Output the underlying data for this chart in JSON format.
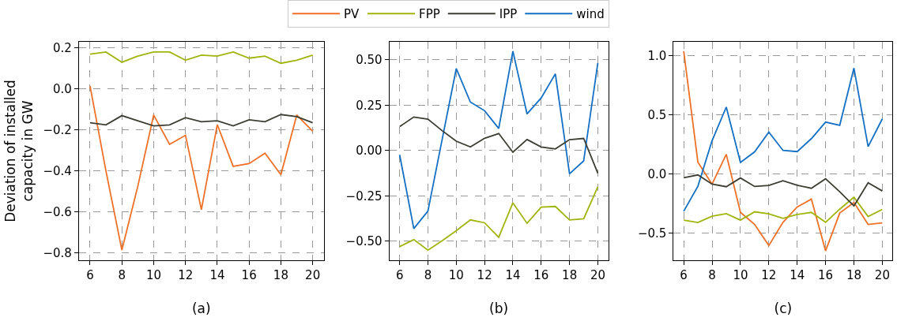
{
  "chart_data": [
    {
      "type": "line",
      "xlabel": "(a)",
      "ylabel": "Deviation of installed capacity in GW",
      "legend": "top",
      "grid": true,
      "line_style": "solid",
      "marker": "none",
      "x": [
        6,
        7,
        8,
        9,
        10,
        11,
        12,
        13,
        14,
        15,
        16,
        17,
        18,
        19,
        20
      ],
      "xlim": [
        5.3,
        20.7
      ],
      "xticks": [
        6,
        8,
        10,
        12,
        14,
        16,
        18,
        20
      ],
      "ylim": [
        -0.835,
        0.23
      ],
      "yticks": [
        {
          "value": -0.8,
          "label": "−0.8"
        },
        {
          "value": -0.6,
          "label": "−0.6"
        },
        {
          "value": -0.4,
          "label": "−0.4"
        },
        {
          "value": -0.2,
          "label": "−0.2"
        },
        {
          "value": 0,
          "label": "0.0"
        },
        {
          "value": 0.2,
          "label": "0.2"
        }
      ],
      "series": [
        {
          "name": "PV",
          "color": "#ee7127",
          "values": [
            0.014,
            -0.4,
            -0.785,
            -0.475,
            -0.127,
            -0.27,
            -0.226,
            -0.588,
            -0.174,
            -0.377,
            -0.364,
            -0.313,
            -0.418,
            -0.127,
            -0.206
          ]
        },
        {
          "name": "FPP",
          "color": "#a0b40a",
          "values": [
            0.17,
            0.18,
            0.13,
            0.16,
            0.18,
            0.18,
            0.14,
            0.165,
            0.16,
            0.18,
            0.15,
            0.16,
            0.125,
            0.14,
            0.165
          ]
        },
        {
          "name": "IPP",
          "color": "#3d3d33",
          "values": [
            -0.165,
            -0.175,
            -0.13,
            -0.155,
            -0.18,
            -0.175,
            -0.14,
            -0.16,
            -0.155,
            -0.18,
            -0.15,
            -0.16,
            -0.125,
            -0.135,
            -0.165
          ]
        }
      ]
    },
    {
      "type": "line",
      "xlabel": "(b)",
      "legend": "top",
      "grid": true,
      "line_style": "solid",
      "marker": "none",
      "x": [
        6,
        7,
        8,
        9,
        10,
        11,
        12,
        13,
        14,
        15,
        16,
        17,
        18,
        19,
        20
      ],
      "xlim": [
        5.27,
        20.73
      ],
      "xticks": [
        6,
        8,
        10,
        12,
        14,
        16,
        18,
        20
      ],
      "ylim": [
        -0.605,
        0.6
      ],
      "yticks": [
        {
          "value": -0.5,
          "label": "−0.50"
        },
        {
          "value": -0.25,
          "label": "−0.25"
        },
        {
          "value": 0,
          "label": "0.00"
        },
        {
          "value": 0.25,
          "label": "0.25"
        },
        {
          "value": 0.5,
          "label": "0.50"
        }
      ],
      "series": [
        {
          "name": "wind",
          "color": "#1370c4",
          "values": [
            -0.023,
            -0.43,
            -0.333,
            0.06,
            0.452,
            0.267,
            0.22,
            0.122,
            0.548,
            0.202,
            0.29,
            0.423,
            -0.128,
            -0.057,
            0.483
          ]
        },
        {
          "name": "FPP",
          "color": "#a0b40a",
          "values": [
            -0.529,
            -0.491,
            -0.549,
            -0.497,
            -0.442,
            -0.382,
            -0.398,
            -0.478,
            -0.288,
            -0.401,
            -0.312,
            -0.308,
            -0.382,
            -0.376,
            -0.2
          ]
        },
        {
          "name": "IPP",
          "color": "#3d3d33",
          "values": [
            0.132,
            0.185,
            0.173,
            0.11,
            0.052,
            0.02,
            0.068,
            0.094,
            -0.009,
            0.061,
            0.02,
            0.009,
            0.06,
            0.067,
            -0.125
          ]
        }
      ]
    },
    {
      "type": "line",
      "xlabel": "(c)",
      "legend": "top",
      "grid": true,
      "line_style": "solid",
      "marker": "none",
      "x": [
        6,
        7,
        8,
        9,
        10,
        11,
        12,
        13,
        14,
        15,
        16,
        17,
        18,
        19,
        20
      ],
      "xlim": [
        5.29,
        20.72
      ],
      "xticks": [
        6,
        8,
        10,
        12,
        14,
        16,
        18,
        20
      ],
      "ylim": [
        -0.73,
        1.12
      ],
      "yticks": [
        {
          "value": -0.5,
          "label": "−0.5"
        },
        {
          "value": 0,
          "label": "0.0"
        },
        {
          "value": 0.5,
          "label": "0.5"
        },
        {
          "value": 1,
          "label": "1.0"
        }
      ],
      "series": [
        {
          "name": "PV",
          "color": "#ee7127",
          "values": [
            1.04,
            0.1,
            -0.085,
            0.167,
            -0.324,
            -0.426,
            -0.605,
            -0.408,
            -0.279,
            -0.212,
            -0.65,
            -0.33,
            -0.241,
            -0.426,
            -0.413
          ]
        },
        {
          "name": "wind",
          "color": "#1370c4",
          "values": [
            -0.315,
            -0.103,
            0.283,
            0.567,
            0.098,
            0.188,
            0.355,
            0.2,
            0.19,
            0.3,
            0.44,
            0.413,
            0.897,
            0.232,
            0.467
          ]
        },
        {
          "name": "FPP",
          "color": "#a0b40a",
          "values": [
            -0.39,
            -0.41,
            -0.357,
            -0.335,
            -0.39,
            -0.319,
            -0.337,
            -0.375,
            -0.342,
            -0.324,
            -0.408,
            -0.297,
            -0.196,
            -0.359,
            -0.299
          ]
        },
        {
          "name": "IPP",
          "color": "#3d3d33",
          "values": [
            -0.031,
            -0.007,
            -0.085,
            -0.107,
            -0.033,
            -0.105,
            -0.096,
            -0.056,
            -0.094,
            -0.12,
            -0.04,
            -0.15,
            -0.27,
            -0.074,
            -0.143
          ]
        }
      ]
    }
  ]
}
